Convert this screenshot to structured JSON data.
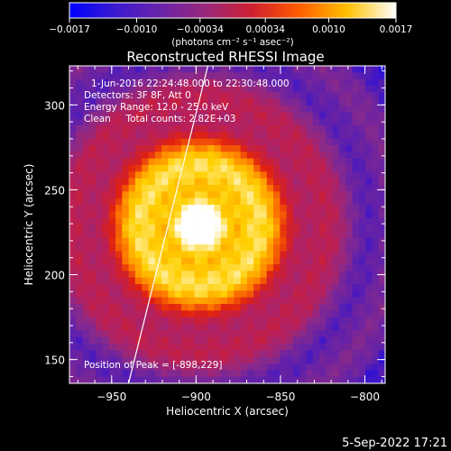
{
  "chart_data": {
    "type": "heatmap",
    "title": "Reconstructed RHESSI Image",
    "xlabel": "Heliocentric X (arcsec)",
    "ylabel": "Heliocentric Y (arcsec)",
    "xlim": [
      -975,
      -788
    ],
    "ylim": [
      136,
      323
    ],
    "x_ticks": [
      -950,
      -900,
      -850,
      -800
    ],
    "x_tick_labels": [
      "−950",
      "−900",
      "−850",
      "−800"
    ],
    "y_ticks": [
      150,
      200,
      250,
      300
    ],
    "y_tick_labels": [
      "150",
      "200",
      "250",
      "300"
    ],
    "colorbar": {
      "range": [
        -0.0017,
        0.0017
      ],
      "tick_labels": [
        "−0.0017",
        "−0.0010",
        "−0.00034",
        "0.00034",
        "0.0010",
        "0.0017"
      ],
      "tick_values": [
        -0.0017,
        -0.001,
        -0.00034,
        0.00034,
        0.001,
        0.0017
      ],
      "unit_label": "(photons cm⁻² s⁻¹ asec⁻²)",
      "colors": [
        "#0000ff",
        "#5a1fb0",
        "#8a2a8a",
        "#b8205a",
        "#e02010",
        "#ff7a00",
        "#ffd000",
        "#ffffff"
      ]
    },
    "annotations": [
      "1-Jun-2016 22:24:48.000 to 22:30:48.000",
      "Detectors: 3F 8F, Att 0",
      "Energy Range: 12.0 - 25.0 keV",
      "Clean     Total counts: 2.82E+03"
    ],
    "peak_label": "Position of Peak = [-898,229]",
    "peak": [
      -898,
      229
    ],
    "limb_line": [
      [
        -940,
        136
      ],
      [
        -893,
        323
      ]
    ],
    "grid": false
  },
  "footer": {
    "timestamp": "5-Sep-2022 17:21"
  }
}
